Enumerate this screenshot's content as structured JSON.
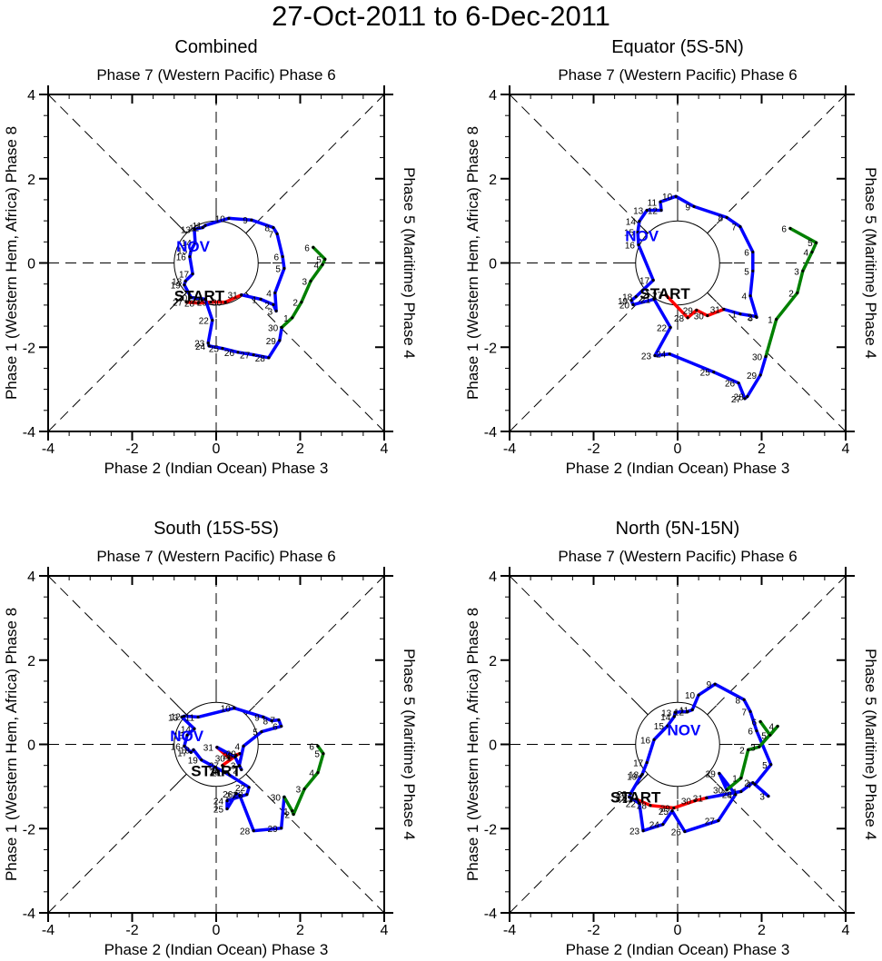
{
  "title": "27-Oct-2011 to 6-Dec-2011",
  "chart_data": [
    {
      "type": "line",
      "title": "Combined",
      "top_label": "Phase 7 (Western Pacific) Phase 6",
      "xlabel": "Phase 2 (Indian Ocean) Phase 3",
      "ylabel": "Phase 1 (Western Hem, Africa) Phase 8",
      "right_label": "Phase 5 (Maritime) Phase 4",
      "xlim": [
        -4,
        4
      ],
      "ylim": [
        -4,
        4
      ],
      "xticks": [
        "-4",
        "-2",
        "0",
        "2",
        "4"
      ],
      "yticks": [
        "-4",
        "-2",
        "0",
        "2",
        "4"
      ],
      "start_label": "START",
      "month_label": "NOV",
      "month_label_pos": [
        -0.55,
        0.4
      ],
      "start_label_pos": [
        -0.4,
        -0.78
      ],
      "series": [
        {
          "name": "Oct",
          "color": "#ff0000",
          "days": [
            27,
            28,
            29,
            30,
            31
          ],
          "x": [
            -0.71,
            -0.43,
            -0.13,
            0.22,
            0.6
          ],
          "y": [
            -0.93,
            -0.95,
            -0.93,
            -0.93,
            -0.76
          ]
        },
        {
          "name": "Nov",
          "color": "#0000ff",
          "days": [
            1,
            2,
            3,
            4,
            5,
            6,
            7,
            8,
            9,
            10,
            11,
            12,
            13,
            14,
            15,
            16,
            17,
            18,
            19,
            20,
            21,
            22,
            23,
            24,
            25,
            26,
            27,
            28,
            29,
            30
          ],
          "x": [
            1.06,
            1.36,
            1.43,
            1.4,
            1.62,
            1.58,
            1.45,
            1.36,
            0.84,
            0.3,
            -0.26,
            -0.32,
            -0.52,
            -0.5,
            -0.6,
            -0.63,
            -0.56,
            -0.73,
            -0.76,
            -0.6,
            -0.26,
            -0.09,
            -0.19,
            -0.17,
            0.15,
            0.52,
            0.89,
            1.25,
            1.51,
            1.56
          ],
          "y": [
            -0.86,
            -0.99,
            -1.14,
            -0.71,
            -0.13,
            0.15,
            0.69,
            0.84,
            1.02,
            1.06,
            0.89,
            0.84,
            0.8,
            0.48,
            0.3,
            0.15,
            -0.26,
            -0.43,
            -0.52,
            -0.82,
            -0.86,
            -1.36,
            -1.9,
            -1.97,
            -2.03,
            -2.12,
            -2.18,
            -2.25,
            -1.84,
            -1.53
          ]
        },
        {
          "name": "Dec",
          "color": "#008000",
          "days": [
            1,
            2,
            3,
            4,
            5,
            6
          ],
          "x": [
            1.81,
            2.03,
            2.25,
            2.53,
            2.59,
            2.31
          ],
          "y": [
            -1.3,
            -0.93,
            -0.43,
            -0.04,
            0.09,
            0.37
          ]
        }
      ]
    },
    {
      "type": "line",
      "title": "Equator (5S-5N)",
      "top_label": "Phase 7 (Western Pacific) Phase 6",
      "xlabel": "Phase 2 (Indian Ocean) Phase 3",
      "ylabel": "Phase 1 (Western Hem, Africa) Phase 8",
      "right_label": "Phase 5 (Maritime) Phase 4",
      "xlim": [
        -4,
        4
      ],
      "ylim": [
        -4,
        4
      ],
      "xticks": [
        "-4",
        "-2",
        "0",
        "2",
        "4"
      ],
      "yticks": [
        "-4",
        "-2",
        "0",
        "2",
        "4"
      ],
      "start_label": "START",
      "month_label": "NOV",
      "month_label_pos": [
        -0.85,
        0.65
      ],
      "start_label_pos": [
        -0.3,
        -0.72
      ],
      "series": [
        {
          "name": "Oct",
          "color": "#ff0000",
          "days": [
            27,
            28,
            29,
            30,
            31
          ],
          "x": [
            -0.28,
            0.24,
            0.45,
            0.71,
            1.1
          ],
          "y": [
            -0.76,
            -1.3,
            -1.12,
            -1.25,
            -1.1
          ]
        },
        {
          "name": "Nov",
          "color": "#0000ff",
          "days": [
            1,
            2,
            3,
            4,
            5,
            6,
            7,
            8,
            9,
            10,
            11,
            12,
            13,
            14,
            15,
            16,
            17,
            18,
            19,
            20,
            21,
            22,
            23,
            24,
            25,
            26,
            27,
            28,
            29,
            30
          ],
          "x": [
            1.49,
            1.86,
            1.88,
            1.73,
            1.79,
            1.79,
            1.49,
            1.17,
            0.39,
            -0.04,
            -0.41,
            -0.39,
            -0.73,
            -0.91,
            -0.95,
            -0.93,
            -0.58,
            -0.99,
            -1.1,
            -1.06,
            -0.56,
            -0.17,
            -0.54,
            -0.19,
            0.86,
            1.45,
            1.6,
            1.66,
            1.97,
            2.1
          ],
          "y": [
            -1.21,
            -1.27,
            -1.29,
            -0.78,
            -0.19,
            0.26,
            0.86,
            1.08,
            1.34,
            1.58,
            1.45,
            1.25,
            1.25,
            0.99,
            0.73,
            0.43,
            -0.41,
            -0.8,
            -0.89,
            -0.99,
            -0.86,
            -1.53,
            -2.2,
            -2.16,
            -2.59,
            -2.85,
            -3.22,
            -3.17,
            -2.66,
            -2.22
          ]
        },
        {
          "name": "Dec",
          "color": "#008000",
          "days": [
            1,
            2,
            3,
            4,
            5,
            6
          ],
          "x": [
            2.35,
            2.85,
            2.98,
            3.2,
            3.3,
            2.68
          ],
          "y": [
            -1.34,
            -0.71,
            -0.19,
            0.26,
            0.48,
            0.82
          ]
        }
      ]
    },
    {
      "type": "line",
      "title": "South (15S-5S)",
      "top_label": "Phase 7 (Western Pacific) Phase 6",
      "xlabel": "Phase 2 (Indian Ocean) Phase 3",
      "ylabel": "Phase 1 (Western Hem, Africa) Phase 8",
      "right_label": "Phase 5 (Maritime) Phase 4",
      "xlim": [
        -4,
        4
      ],
      "ylim": [
        -4,
        4
      ],
      "xticks": [
        "-4",
        "-2",
        "0",
        "2",
        "4"
      ],
      "yticks": [
        "-4",
        "-2",
        "0",
        "2",
        "4"
      ],
      "start_label": "START",
      "month_label": "NOV",
      "month_label_pos": [
        -0.7,
        0.2
      ],
      "start_label_pos": [
        0.0,
        -0.62
      ],
      "series": [
        {
          "name": "Oct",
          "color": "#ff0000",
          "days": [
            27,
            28,
            29,
            30,
            31
          ],
          "x": [
            0.15,
            0.48,
            0.56,
            0.3,
            0.02
          ],
          "y": [
            -0.5,
            -0.26,
            -0.22,
            -0.32,
            -0.07
          ]
        },
        {
          "name": "Nov",
          "color": "#0000ff",
          "days": [
            1,
            2,
            3,
            4,
            5,
            6,
            7,
            8,
            9,
            10,
            11,
            12,
            13,
            14,
            15,
            16,
            17,
            18,
            19,
            20,
            21,
            22,
            23,
            24,
            25,
            26,
            27,
            28,
            29,
            30
          ],
          "x": [
            0.45,
            0.6,
            0.55,
            0.65,
            1.08,
            1.55,
            1.49,
            1.32,
            1.12,
            0.43,
            -0.43,
            -0.76,
            -0.82,
            -0.52,
            -0.69,
            -0.76,
            -0.6,
            -0.54,
            -0.35,
            0.17,
            0.22,
            0.78,
            0.73,
            0.26,
            0.26,
            0.48,
            0.56,
            0.89,
            1.55,
            1.62
          ],
          "y": [
            -0.3,
            -0.6,
            -0.5,
            -0.04,
            0.3,
            0.43,
            0.58,
            0.56,
            0.65,
            0.86,
            0.65,
            0.67,
            0.65,
            0.37,
            0.22,
            -0.04,
            -0.19,
            -0.13,
            -0.37,
            -0.65,
            -0.67,
            -1.02,
            -1.19,
            -1.34,
            -1.53,
            -1.17,
            -1.21,
            -2.05,
            -1.99,
            -1.25
          ]
        },
        {
          "name": "Dec",
          "color": "#008000",
          "days": [
            1,
            2,
            3,
            4,
            5,
            6
          ],
          "x": [
            1.81,
            1.84,
            2.1,
            2.42,
            2.55,
            2.42
          ],
          "y": [
            -1.58,
            -1.66,
            -1.06,
            -0.67,
            -0.22,
            -0.04
          ]
        }
      ]
    },
    {
      "type": "line",
      "title": "North (5N-15N)",
      "top_label": "Phase 7 (Western Pacific) Phase 6",
      "xlabel": "Phase 2 (Indian Ocean) Phase 3",
      "ylabel": "Phase 1 (Western Hem, Africa) Phase 8",
      "right_label": "Phase 5 (Maritime) Phase 4",
      "xlim": [
        -4,
        4
      ],
      "ylim": [
        -4,
        4
      ],
      "xticks": [
        "-4",
        "-2",
        "0",
        "2",
        "4"
      ],
      "yticks": [
        "-4",
        "-2",
        "0",
        "2",
        "4"
      ],
      "start_label": "START",
      "month_label": "NOV",
      "month_label_pos": [
        0.15,
        0.35
      ],
      "start_label_pos": [
        -1.0,
        -1.25
      ],
      "series": [
        {
          "name": "Oct",
          "color": "#ff0000",
          "days": [
            27,
            28,
            29,
            30,
            31
          ],
          "x": [
            -0.99,
            -0.65,
            -0.09,
            0.41,
            0.69
          ],
          "y": [
            -1.3,
            -1.45,
            -1.51,
            -1.34,
            -1.27
          ]
        },
        {
          "name": "Nov",
          "color": "#0000ff",
          "days": [
            1,
            2,
            3,
            4,
            5,
            6,
            7,
            8,
            9,
            10,
            11,
            12,
            13,
            14,
            15,
            16,
            17,
            18,
            19,
            20,
            21,
            22,
            23,
            24,
            25,
            26,
            27,
            28,
            29,
            30
          ],
          "x": [
            1.51,
            1.79,
            2.16,
            1.84,
            2.22,
            1.88,
            1.73,
            1.58,
            0.89,
            0.5,
            0.35,
            0.24,
            -0.06,
            -0.08,
            -0.24,
            -0.56,
            -0.73,
            -0.84,
            -0.88,
            -1.12,
            -1.15,
            -0.91,
            -0.82,
            -0.35,
            -0.13,
            0.17,
            0.97,
            1.38,
            0.99,
            1.17
          ],
          "y": [
            -1.12,
            -0.91,
            -1.23,
            -0.95,
            -0.48,
            0.32,
            0.78,
            1.06,
            1.43,
            1.17,
            0.82,
            0.78,
            0.76,
            0.66,
            0.44,
            0.11,
            -0.43,
            -0.71,
            -0.76,
            -1.17,
            -1.25,
            -1.4,
            -2.05,
            -1.9,
            -1.58,
            -2.07,
            -1.81,
            -1.19,
            -0.69,
            -1.08
          ]
        },
        {
          "name": "Dec",
          "color": "#008000",
          "days": [
            1,
            2,
            3,
            4,
            5,
            6
          ],
          "x": [
            1.51,
            1.68,
            1.94,
            2.38,
            2.2,
            1.97
          ],
          "y": [
            -0.8,
            -0.13,
            -0.06,
            0.43,
            0.22,
            0.54
          ]
        }
      ]
    }
  ]
}
